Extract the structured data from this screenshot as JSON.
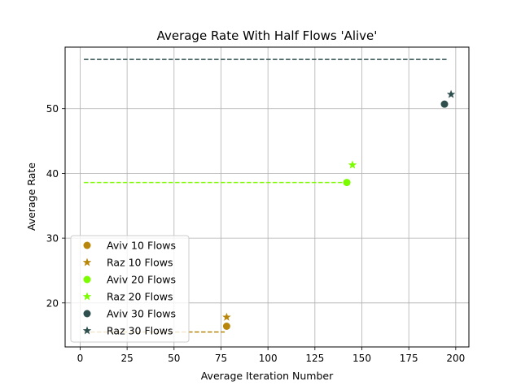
{
  "chart_data": {
    "type": "scatter",
    "title": "Average Rate With Half Flows 'Alive'",
    "xlabel": "Average Iteration Number",
    "ylabel": "Average Rate",
    "xlim": [
      -8,
      207
    ],
    "ylim": [
      13.2,
      59.5
    ],
    "xticks": [
      0,
      25,
      50,
      75,
      100,
      125,
      150,
      175,
      200
    ],
    "yticks": [
      20,
      30,
      40,
      50
    ],
    "grid": true,
    "legend_position": "lower-left",
    "series": [
      {
        "name": "Aviv 10 Flows",
        "marker": "circle",
        "color": "#b8860b",
        "points": [
          {
            "x": 78,
            "y": 16.4
          }
        ]
      },
      {
        "name": "Raz 10 Flows",
        "marker": "star",
        "color": "#b8860b",
        "points": [
          {
            "x": 78,
            "y": 17.8
          }
        ]
      },
      {
        "name": "Aviv 20 Flows",
        "marker": "circle",
        "color": "#7cfc00",
        "points": [
          {
            "x": 142,
            "y": 38.6
          }
        ]
      },
      {
        "name": "Raz 20 Flows",
        "marker": "star",
        "color": "#7cfc00",
        "points": [
          {
            "x": 145,
            "y": 41.3
          }
        ]
      },
      {
        "name": "Aviv 30 Flows",
        "marker": "circle",
        "color": "#2f4f4f",
        "points": [
          {
            "x": 194,
            "y": 50.7
          }
        ]
      },
      {
        "name": "Raz 30 Flows",
        "marker": "star",
        "color": "#2f4f4f",
        "points": [
          {
            "x": 197.5,
            "y": 52.2
          }
        ]
      }
    ],
    "reference_lines": [
      {
        "color": "#b8860b",
        "y": 15.5,
        "x": [
          2,
          77
        ]
      },
      {
        "color": "#7cfc00",
        "y": 38.6,
        "x": [
          2,
          141
        ]
      },
      {
        "color": "#2f4f4f",
        "y": 57.6,
        "x": [
          2,
          196
        ]
      }
    ]
  }
}
